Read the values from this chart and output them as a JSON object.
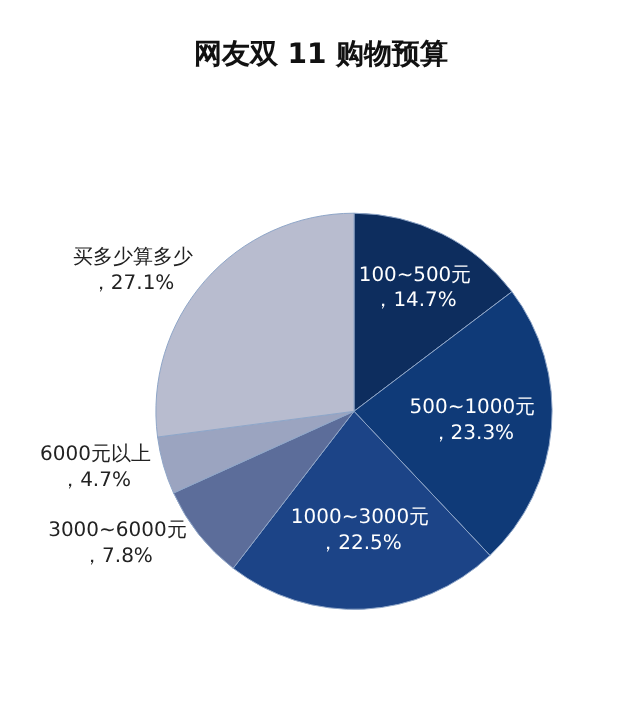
{
  "chart_data": {
    "type": "pie",
    "title": "网友双 11 购物预算",
    "categories": [
      "100~500元",
      "500~1000元",
      "1000~3000元",
      "3000~6000元",
      "6000元以上",
      "买多少算多少"
    ],
    "value_labels": [
      "，14.7%",
      "，23.3%",
      "，22.5%",
      "，7.8%",
      "，4.7%",
      "，27.1%"
    ],
    "values": [
      14.7,
      23.3,
      22.5,
      7.8,
      4.7,
      27.1
    ],
    "colors": [
      "#0d2d5e",
      "#0f3a78",
      "#1c4487",
      "#5c6d9a",
      "#9ba4c0",
      "#b8bccf"
    ],
    "legend": false
  }
}
